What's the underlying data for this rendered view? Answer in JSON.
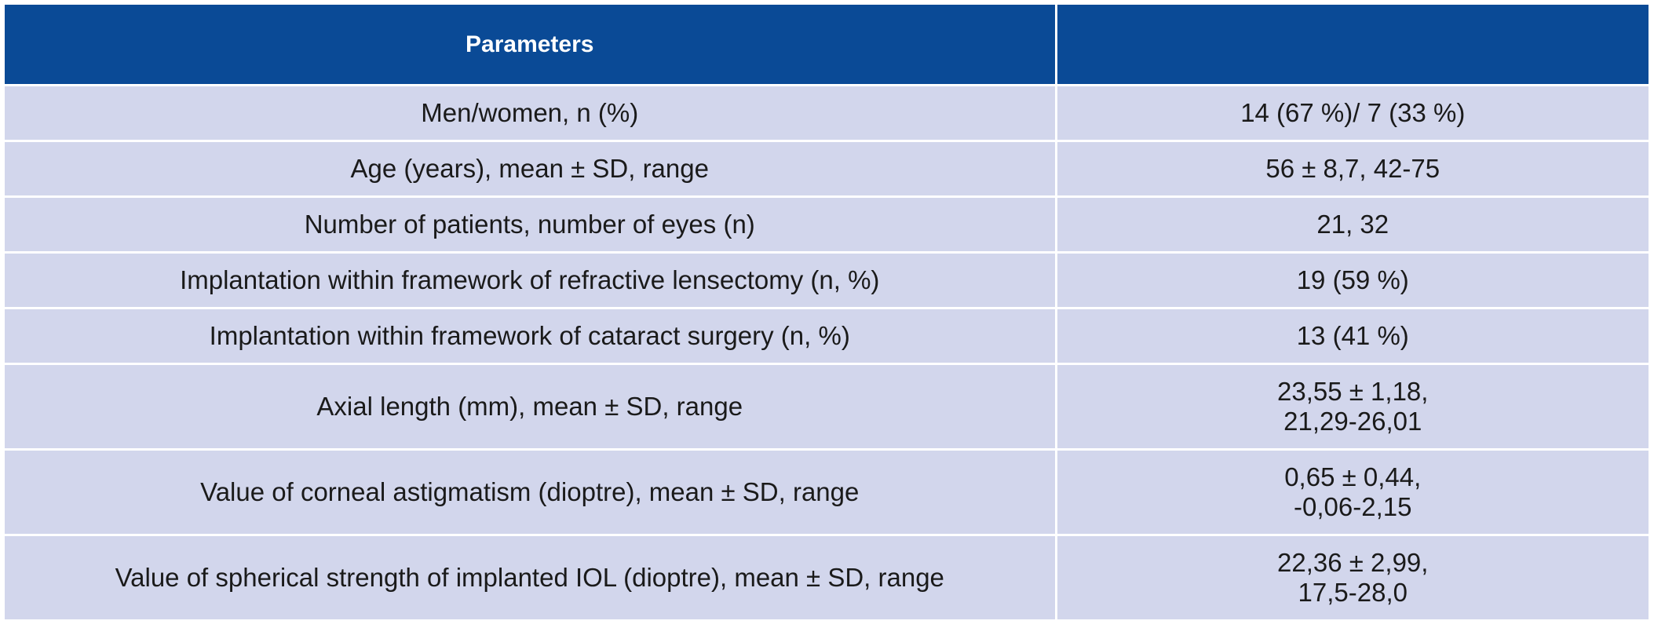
{
  "table": {
    "headers": [
      "Parameters",
      ""
    ],
    "rows": [
      {
        "parameter": "Men/women, n (%)",
        "value": [
          "14 (67 %)/ 7 (33 %)"
        ]
      },
      {
        "parameter": "Age (years), mean ± SD, range",
        "value": [
          "56 ± 8,7, 42-75"
        ]
      },
      {
        "parameter": "Number of patients, number of eyes (n)",
        "value": [
          "21, 32"
        ]
      },
      {
        "parameter": "Implantation within framework of refractive lensectomy (n, %)",
        "value": [
          "19 (59 %)"
        ]
      },
      {
        "parameter": "Implantation within framework of cataract surgery (n, %)",
        "value": [
          "13 (41 %)"
        ]
      },
      {
        "parameter": "Axial length (mm), mean ± SD, range",
        "value": [
          "23,55 ± 1,18,",
          "21,29-26,01"
        ]
      },
      {
        "parameter": "Value of corneal astigmatism (dioptre), mean ± SD, range",
        "value": [
          "0,65 ± 0,44,",
          "-0,06-2,15"
        ]
      },
      {
        "parameter": "Value of spherical strength of implanted IOL (dioptre), mean ± SD, range",
        "value": [
          "22,36 ± 2,99,",
          "17,5-28,0"
        ]
      }
    ]
  },
  "colors": {
    "header_bg": "#0a4a96",
    "header_text": "#ffffff",
    "row_bg": "#d2d6ec",
    "text": "#1a1a1a"
  }
}
